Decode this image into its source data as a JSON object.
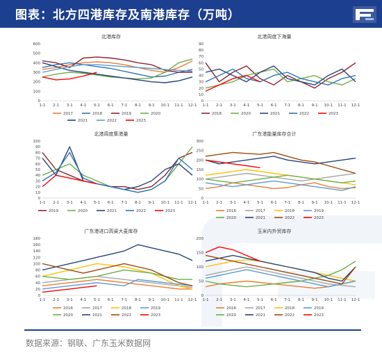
{
  "header": {
    "title": "图表：北方四港库存及南港库存（万吨）"
  },
  "source": "数据来源：钢联、广东玉米数据网",
  "colors": {
    "header_bg": "#1d3f8f",
    "2016": "#ed7d31",
    "2017": "#a5a5a5",
    "2018": "#ffc000",
    "2019": "#5b9bd5",
    "2020": "#70ad47",
    "2021": "#264478",
    "2022": "#9e480e",
    "2023": "#ff0000",
    "y2017_top": "#ed7d31",
    "y2018_top": "#2e75b6",
    "y2019_top": "#8b2332"
  },
  "chart_data": [
    {
      "type": "line",
      "title": "北港库存",
      "yticks": [
        "0",
        "100",
        "200",
        "300",
        "400",
        "500",
        "600"
      ],
      "ylim": [
        0,
        600
      ],
      "xticks": [
        "1-1",
        "2-1",
        "3-1",
        "4-1",
        "5-1",
        "6-1",
        "7-1",
        "8-1",
        "9-1",
        "10-1",
        "11-1",
        "12-1"
      ],
      "legend": [
        "2017",
        "2018",
        "2019",
        "2020",
        "2021",
        "2022",
        "2023"
      ],
      "series": [
        {
          "name": "2017",
          "color": "#ed7d31",
          "values": [
            330,
            350,
            380,
            400,
            410,
            400,
            380,
            350,
            320,
            300,
            350,
            420
          ]
        },
        {
          "name": "2018",
          "color": "#2e75b6",
          "values": [
            350,
            380,
            400,
            380,
            360,
            340,
            310,
            280,
            250,
            260,
            300,
            330
          ]
        },
        {
          "name": "2019",
          "color": "#8b2332",
          "values": [
            420,
            400,
            350,
            450,
            460,
            450,
            430,
            400,
            380,
            320,
            300,
            300
          ]
        },
        {
          "name": "2020",
          "color": "#70ad47",
          "values": [
            250,
            280,
            300,
            290,
            270,
            250,
            240,
            230,
            240,
            300,
            400,
            440
          ]
        },
        {
          "name": "2021",
          "color": "#264478",
          "values": [
            400,
            360,
            320,
            300,
            280,
            260,
            240,
            220,
            200,
            190,
            210,
            250
          ]
        },
        {
          "name": "2022",
          "color": "#5b9bd5",
          "values": [
            300,
            330,
            360,
            380,
            380,
            370,
            360,
            350,
            340,
            330,
            320,
            310
          ]
        },
        {
          "name": "2023",
          "color": "#ff0000",
          "values": [
            250,
            220,
            230,
            260,
            300,
            null,
            null,
            null,
            null,
            null,
            null,
            null
          ]
        }
      ]
    },
    {
      "type": "line",
      "title": "北港周度下海量",
      "yticks": [
        "0",
        "10",
        "20",
        "30",
        "40",
        "50",
        "60",
        "70",
        "80",
        "90"
      ],
      "ylim": [
        0,
        90
      ],
      "xticks": [
        "1-1",
        "2-1",
        "3-1",
        "4-1",
        "5-1",
        "6-1",
        "7-1",
        "8-1",
        "9-1",
        "10-1",
        "11-1",
        "12-1"
      ],
      "legend": [
        "2018",
        "2020",
        "2021",
        "2022",
        "2023"
      ],
      "series": [
        {
          "name": "2018",
          "color": "#8b2332",
          "values": [
            60,
            30,
            45,
            55,
            35,
            25,
            40,
            30,
            20,
            35,
            45,
            60
          ]
        },
        {
          "name": "2020",
          "color": "#70ad47",
          "values": [
            20,
            25,
            30,
            40,
            45,
            50,
            30,
            35,
            40,
            30,
            25,
            35
          ]
        },
        {
          "name": "2021",
          "color": "#264478",
          "values": [
            45,
            50,
            40,
            30,
            45,
            55,
            35,
            30,
            25,
            40,
            50,
            30
          ]
        },
        {
          "name": "2022",
          "color": "#2e75b6",
          "values": [
            30,
            40,
            50,
            35,
            30,
            40,
            45,
            35,
            30,
            25,
            35,
            40
          ]
        },
        {
          "name": "2023",
          "color": "#ff0000",
          "values": [
            15,
            25,
            35,
            40,
            30,
            null,
            null,
            null,
            null,
            null,
            null,
            null
          ]
        }
      ]
    },
    {
      "type": "line",
      "title": "北港周度集港量",
      "yticks": [
        "0",
        "10",
        "20",
        "30",
        "40",
        "50",
        "60",
        "70",
        "80",
        "90",
        "100"
      ],
      "ylim": [
        0,
        100
      ],
      "xticks": [
        "1-1",
        "2-1",
        "3-1",
        "4-1",
        "5-1",
        "6-1",
        "7-1",
        "8-1",
        "9-1",
        "10-1",
        "11-1",
        "12-1"
      ],
      "legend": [
        "2019",
        "2020",
        "2021",
        "2022",
        "2023"
      ],
      "series": [
        {
          "name": "2019",
          "color": "#8b2332",
          "values": [
            80,
            50,
            40,
            30,
            25,
            20,
            20,
            15,
            20,
            40,
            70,
            80
          ]
        },
        {
          "name": "2020",
          "color": "#70ad47",
          "values": [
            40,
            50,
            60,
            40,
            30,
            20,
            15,
            10,
            15,
            30,
            60,
            90
          ]
        },
        {
          "name": "2021",
          "color": "#264478",
          "values": [
            70,
            40,
            90,
            30,
            25,
            20,
            15,
            20,
            30,
            50,
            60,
            40
          ]
        },
        {
          "name": "2022",
          "color": "#2e75b6",
          "values": [
            30,
            45,
            80,
            35,
            25,
            20,
            15,
            10,
            15,
            30,
            70,
            50
          ]
        },
        {
          "name": "2023",
          "color": "#ff0000",
          "values": [
            20,
            40,
            35,
            30,
            25,
            null,
            null,
            null,
            null,
            null,
            null,
            null
          ]
        }
      ]
    },
    {
      "type": "line",
      "title": "广东港能量库存合计",
      "yticks": [
        "0",
        "50",
        "100",
        "150",
        "200",
        "250",
        "300"
      ],
      "ylim": [
        0,
        300
      ],
      "xticks": [
        "1-1",
        "2-1",
        "3-1",
        "4-1",
        "5-1",
        "6-1",
        "7-1",
        "8-1",
        "9-1",
        "10-1",
        "11-1",
        "12-1"
      ],
      "legend": [
        "2016",
        "2017",
        "2018",
        "2019",
        "2020",
        "2021",
        "2022",
        "2023"
      ],
      "series": [
        {
          "name": "2016",
          "color": "#ed7d31",
          "values": [
            50,
            60,
            80,
            70,
            60,
            50,
            55,
            70,
            80,
            60,
            50,
            55
          ]
        },
        {
          "name": "2017",
          "color": "#a5a5a5",
          "values": [
            100,
            110,
            120,
            130,
            120,
            110,
            100,
            90,
            100,
            110,
            120,
            130
          ]
        },
        {
          "name": "2018",
          "color": "#ffc000",
          "values": [
            120,
            130,
            140,
            150,
            140,
            130,
            120,
            110,
            100,
            90,
            80,
            70
          ]
        },
        {
          "name": "2019",
          "color": "#5b9bd5",
          "values": [
            80,
            70,
            60,
            70,
            80,
            90,
            80,
            70,
            60,
            50,
            40,
            60
          ]
        },
        {
          "name": "2020",
          "color": "#70ad47",
          "values": [
            100,
            90,
            80,
            90,
            100,
            110,
            120,
            110,
            100,
            90,
            80,
            90
          ]
        },
        {
          "name": "2021",
          "color": "#264478",
          "values": [
            200,
            180,
            190,
            200,
            210,
            220,
            200,
            190,
            180,
            190,
            200,
            210
          ]
        },
        {
          "name": "2022",
          "color": "#9e480e",
          "values": [
            220,
            230,
            240,
            235,
            230,
            240,
            220,
            200,
            190,
            170,
            150,
            130
          ]
        },
        {
          "name": "2023",
          "color": "#ff0000",
          "values": [
            200,
            190,
            180,
            170,
            160,
            null,
            null,
            null,
            null,
            null,
            null,
            null
          ]
        }
      ]
    },
    {
      "type": "line",
      "title": "广东港进口高粱大麦库存",
      "yticks": [
        "0",
        "20",
        "40",
        "60",
        "80",
        "100",
        "120",
        "140",
        "160",
        "180"
      ],
      "ylim": [
        0,
        180
      ],
      "xticks": [
        "1-1",
        "2-1",
        "3-1",
        "4-1",
        "5-1",
        "6-1",
        "7-1",
        "8-1",
        "9-1",
        "10-1",
        "11-1",
        "12-1"
      ],
      "legend": [
        "2016",
        "2017",
        "2018",
        "2019",
        "2020",
        "2021",
        "2022",
        "2023"
      ],
      "series": [
        {
          "name": "2016",
          "color": "#ed7d31",
          "values": [
            30,
            35,
            40,
            45,
            50,
            45,
            40,
            35,
            30,
            25,
            20,
            20
          ]
        },
        {
          "name": "2017",
          "color": "#a5a5a5",
          "values": [
            40,
            45,
            50,
            55,
            60,
            55,
            50,
            45,
            40,
            35,
            30,
            25
          ]
        },
        {
          "name": "2018",
          "color": "#ffc000",
          "values": [
            60,
            70,
            80,
            90,
            100,
            95,
            90,
            80,
            70,
            50,
            30,
            20
          ]
        },
        {
          "name": "2019",
          "color": "#5b9bd5",
          "values": [
            20,
            25,
            30,
            35,
            40,
            35,
            30,
            50,
            45,
            40,
            35,
            30
          ]
        },
        {
          "name": "2020",
          "color": "#70ad47",
          "values": [
            60,
            55,
            50,
            55,
            60,
            70,
            80,
            75,
            70,
            60,
            50,
            50
          ]
        },
        {
          "name": "2021",
          "color": "#264478",
          "values": [
            80,
            90,
            100,
            110,
            120,
            130,
            140,
            160,
            150,
            140,
            130,
            110
          ]
        },
        {
          "name": "2022",
          "color": "#9e480e",
          "values": [
            100,
            90,
            80,
            70,
            80,
            90,
            100,
            90,
            80,
            60,
            40,
            30
          ]
        },
        {
          "name": "2023",
          "color": "#ff0000",
          "values": [
            10,
            15,
            20,
            25,
            30,
            null,
            null,
            null,
            null,
            null,
            null,
            null
          ]
        }
      ]
    },
    {
      "type": "line",
      "title": "玉米内外贸库存",
      "yticks": [
        "0",
        "50",
        "100",
        "150",
        "200"
      ],
      "ylim": [
        0,
        200
      ],
      "xticks": [
        "1-1",
        "2-1",
        "3-1",
        "4-1",
        "5-1",
        "6-1",
        "7-1",
        "8-1",
        "9-1",
        "10-1",
        "11-1",
        "12-1"
      ],
      "legend": [
        "2016",
        "2017",
        "2018",
        "2019",
        "2020",
        "2021",
        "2022",
        "2023"
      ],
      "series": [
        {
          "name": "2016",
          "color": "#ed7d31",
          "values": [
            30,
            40,
            45,
            50,
            45,
            40,
            35,
            30,
            25,
            30,
            40,
            50
          ]
        },
        {
          "name": "2017",
          "color": "#a5a5a5",
          "values": [
            70,
            80,
            90,
            100,
            90,
            80,
            70,
            60,
            50,
            40,
            35,
            30
          ]
        },
        {
          "name": "2018",
          "color": "#ffc000",
          "values": [
            100,
            110,
            120,
            125,
            120,
            110,
            100,
            90,
            80,
            70,
            60,
            50
          ]
        },
        {
          "name": "2019",
          "color": "#5b9bd5",
          "values": [
            60,
            70,
            80,
            90,
            80,
            70,
            60,
            50,
            40,
            30,
            40,
            50
          ]
        },
        {
          "name": "2020",
          "color": "#70ad47",
          "values": [
            50,
            40,
            35,
            30,
            35,
            40,
            45,
            50,
            60,
            70,
            90,
            120
          ]
        },
        {
          "name": "2021",
          "color": "#264478",
          "values": [
            120,
            130,
            140,
            130,
            120,
            110,
            100,
            90,
            80,
            60,
            50,
            100
          ]
        },
        {
          "name": "2022",
          "color": "#9e480e",
          "values": [
            140,
            130,
            120,
            110,
            100,
            90,
            80,
            70,
            60,
            50,
            40,
            100
          ]
        },
        {
          "name": "2023",
          "color": "#ff0000",
          "values": [
            150,
            170,
            160,
            140,
            120,
            null,
            null,
            null,
            null,
            null,
            null,
            null
          ]
        }
      ]
    }
  ]
}
